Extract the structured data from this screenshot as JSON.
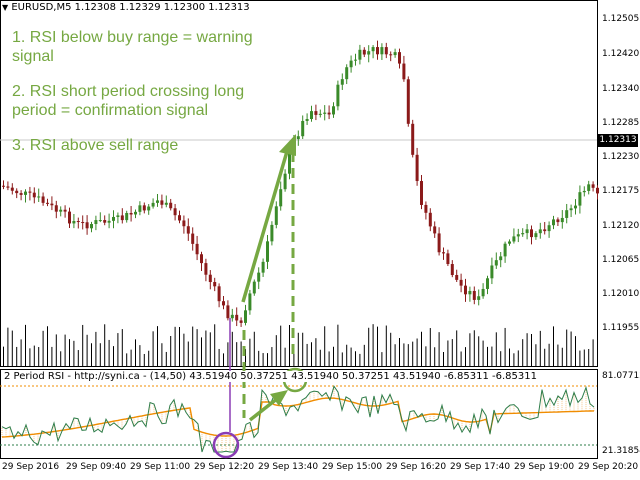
{
  "header": {
    "arrow_glyph": "▼",
    "symbol": "EURUSD,M5",
    "ohlc": [
      "1.12308",
      "1.12329",
      "1.12300",
      "1.12313"
    ]
  },
  "annotations": [
    {
      "lines": [
        "1. RSI below buy range = warning",
        "signal"
      ]
    },
    {
      "lines": [
        "2. RSI short period crossing long",
        "period = confirmation signal"
      ]
    },
    {
      "lines": [
        "3. RSI above sell range"
      ]
    }
  ],
  "price_labels": [
    "1.12505",
    "1.12420",
    "1.12340",
    "1.12285",
    "1.12230",
    "1.12175",
    "1.12120",
    "1.12065",
    "1.12010",
    "1.11955"
  ],
  "current_price": "1.12313",
  "indicator": {
    "title": "2 Period RSI - http://syni.ca - (14,50) 43.51940 50.37251 43.51940 50.37251 43.51940 -6.85311 -6.85311",
    "upper_label": "81.07712",
    "lower_label": "21.31854"
  },
  "time_labels": [
    "29 Sep 2016",
    "29 Sep 09:40",
    "29 Sep 11:00",
    "29 Sep 12:20",
    "29 Sep 13:40",
    "29 Sep 15:00",
    "29 Sep 16:20",
    "29 Sep 17:40",
    "29 Sep 19:00",
    "29 Sep 20:20"
  ],
  "colors": {
    "bull": "#3a8a2a",
    "bear": "#8b1a1a",
    "annotation": "#76a842",
    "rsi_fast": "#2e7d4a",
    "rsi_slow": "#f08c00",
    "hist_fill": "#f0a040",
    "highlight": "#8a3cb4"
  }
}
